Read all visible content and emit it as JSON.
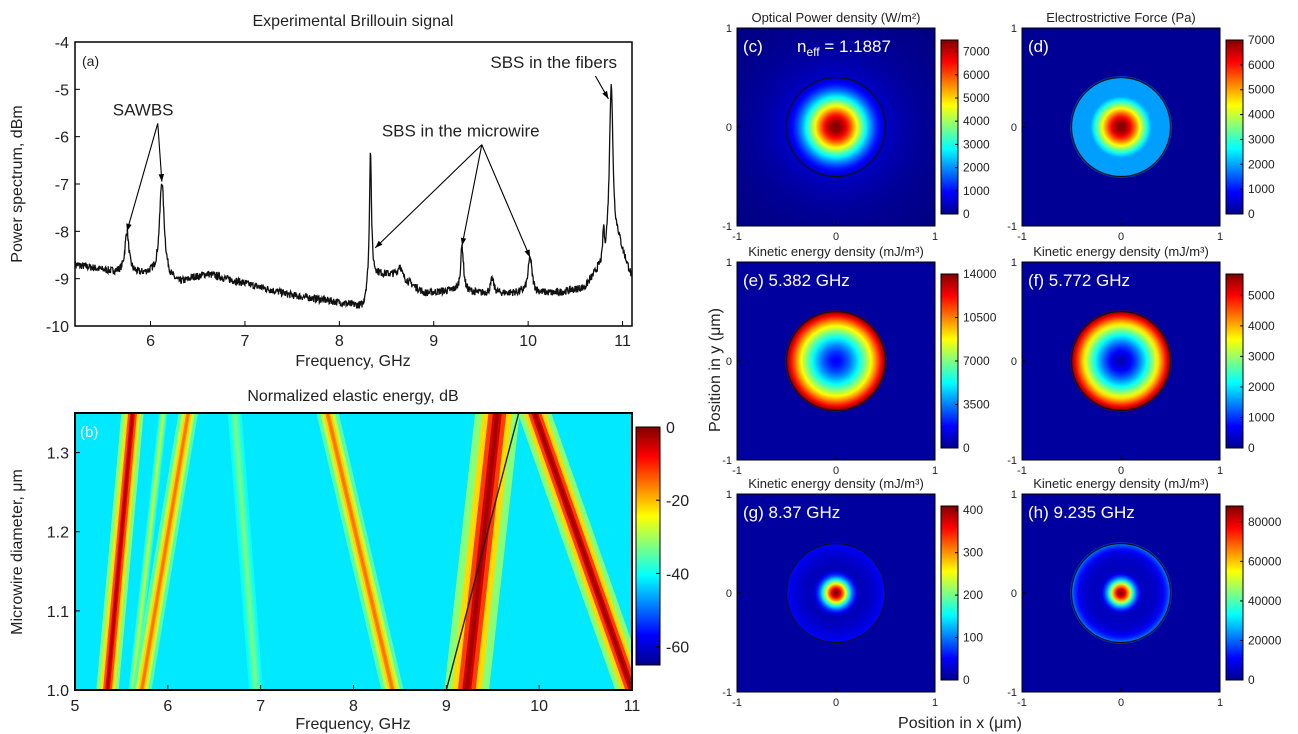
{
  "chart_data": [
    {
      "id": "a",
      "type": "line",
      "title": "Experimental Brillouin signal",
      "panel_label": "(a)",
      "xlabel": "Frequency, GHz",
      "ylabel": "Power spectrum, dBm",
      "xlim": [
        5.2,
        11.1
      ],
      "ylim": [
        -10,
        -4
      ],
      "xticks": [
        6,
        7,
        8,
        9,
        10,
        11
      ],
      "yticks": [
        -10,
        -9,
        -8,
        -7,
        -6,
        -5,
        -4
      ],
      "baseline": [
        [
          5.2,
          -8.7
        ],
        [
          5.6,
          -8.85
        ],
        [
          6.0,
          -8.9
        ],
        [
          6.3,
          -9.1
        ],
        [
          6.6,
          -8.9
        ],
        [
          7.0,
          -9.1
        ],
        [
          7.5,
          -9.35
        ],
        [
          8.0,
          -9.5
        ],
        [
          8.25,
          -9.6
        ],
        [
          8.35,
          -8.9
        ],
        [
          8.6,
          -8.9
        ],
        [
          8.9,
          -9.3
        ],
        [
          9.2,
          -9.25
        ],
        [
          9.5,
          -9.3
        ],
        [
          9.9,
          -9.3
        ],
        [
          10.3,
          -9.3
        ],
        [
          10.6,
          -9.2
        ],
        [
          10.75,
          -8.8
        ],
        [
          10.95,
          -8.2
        ],
        [
          11.1,
          -9.0
        ]
      ],
      "peaks": [
        {
          "x": 5.75,
          "y": -8.0,
          "w": 0.025
        },
        {
          "x": 6.12,
          "y": -6.95,
          "w": 0.03
        },
        {
          "x": 6.48,
          "y": -8.95,
          "w": 0.05
        },
        {
          "x": 8.33,
          "y": -6.25,
          "w": 0.012
        },
        {
          "x": 8.64,
          "y": -8.7,
          "w": 0.02
        },
        {
          "x": 9.3,
          "y": -8.3,
          "w": 0.018
        },
        {
          "x": 9.62,
          "y": -9.0,
          "w": 0.02
        },
        {
          "x": 10.02,
          "y": -8.55,
          "w": 0.025
        },
        {
          "x": 10.8,
          "y": -7.85,
          "w": 0.012
        },
        {
          "x": 10.88,
          "y": -4.85,
          "w": 0.022
        }
      ],
      "annotations": [
        {
          "text": "SAWBS",
          "x": 5.6,
          "y": -5.55,
          "targets": [
            [
              5.75,
              -8.0
            ],
            [
              6.12,
              -6.95
            ]
          ]
        },
        {
          "text": "SBS in the microwire",
          "x": 8.45,
          "y": -6.0,
          "targets": [
            [
              8.38,
              -8.35
            ],
            [
              9.3,
              -8.3
            ],
            [
              10.02,
              -8.55
            ]
          ]
        },
        {
          "text": "SBS in the fibers",
          "x": 9.6,
          "y": -4.55,
          "targets": [
            [
              10.85,
              -5.2
            ]
          ]
        }
      ]
    },
    {
      "id": "b",
      "type": "heatmap",
      "title": "Normalized elastic energy, dB",
      "panel_label": "(b)",
      "xlabel": "Frequency, GHz",
      "ylabel": "Microwire diameter, μm",
      "xlim": [
        5,
        11
      ],
      "ylim": [
        1.0,
        1.35
      ],
      "xticks": [
        5,
        6,
        7,
        8,
        9,
        10,
        11
      ],
      "yticks": [
        1.0,
        1.1,
        1.2,
        1.3
      ],
      "colorbar": {
        "min": -65,
        "max": 0,
        "ticks": [
          0,
          -20,
          -40,
          -60
        ]
      },
      "background_db": -42,
      "modes": [
        {
          "f_bottom": 5.35,
          "f_top": 5.62,
          "db": -3,
          "width": 0.04
        },
        {
          "f_bottom": 5.62,
          "f_top": 5.95,
          "db": -28,
          "width": 0.015
        },
        {
          "f_bottom": 5.72,
          "f_top": 6.22,
          "db": -15,
          "width": 0.035
        },
        {
          "f_bottom": 6.95,
          "f_top": 6.72,
          "db": -33,
          "width": 0.025
        },
        {
          "f_bottom": 8.42,
          "f_top": 7.72,
          "db": -15,
          "width": 0.04
        },
        {
          "f_bottom": 9.22,
          "f_top": 9.55,
          "db": -2,
          "width": 0.08
        },
        {
          "f_bottom": 11.0,
          "f_top": 9.95,
          "db": -2,
          "width": 0.06
        }
      ],
      "fit_line": [
        [
          9.0,
          1.0
        ],
        [
          9.78,
          1.35
        ]
      ]
    },
    {
      "id": "c",
      "type": "heatmap",
      "title": "Optical Power density (W/m²)",
      "panel_label": "(c)",
      "extra_label": "n",
      "extra_label_sub": "eff",
      "extra_label_value": " = 1.1887",
      "colorbar": {
        "min": 0,
        "max": 7500,
        "ticks": [
          0,
          1000,
          2000,
          3000,
          4000,
          5000,
          6000,
          7000
        ]
      },
      "profile": "gaussian",
      "inside_frac": 0.58,
      "outside_decay": 0.35
    },
    {
      "id": "d",
      "type": "heatmap",
      "title": "Electrostrictive Force (Pa)",
      "panel_label": "(d)",
      "colorbar": {
        "min": 0,
        "max": 7000,
        "ticks": [
          0,
          1000,
          2000,
          3000,
          4000,
          5000,
          6000,
          7000
        ]
      },
      "profile": "gaussian_clipped",
      "inside_frac": 0.52,
      "edge_frac": 0.28
    },
    {
      "id": "e",
      "type": "heatmap",
      "title": "Kinetic energy density (mJ/m³)",
      "panel_label": "(e) 5.382 GHz",
      "colorbar": {
        "min": 0,
        "max": 14000,
        "ticks": [
          0,
          3500,
          7000,
          10500,
          14000
        ]
      },
      "profile": "ring",
      "center_frac": 0.12
    },
    {
      "id": "f",
      "type": "heatmap",
      "title": "Kinetic energy density (mJ/m³)",
      "panel_label": "(f) 5.772 GHz",
      "colorbar": {
        "min": 0,
        "max": 5700,
        "ticks": [
          0,
          1000,
          2000,
          3000,
          4000,
          5000
        ]
      },
      "profile": "ring",
      "center_frac": 0.05
    },
    {
      "id": "g",
      "type": "heatmap",
      "title": "Kinetic energy density (mJ/m³)",
      "panel_label": "(g) 8.37 GHz",
      "colorbar": {
        "min": 0,
        "max": 410,
        "ticks": [
          0,
          100,
          200,
          300,
          400
        ]
      },
      "profile": "spot",
      "spot_frac": 0.3
    },
    {
      "id": "h",
      "type": "heatmap",
      "title": "Kinetic energy density (mJ/m³)",
      "panel_label": "(h) 9.235 GHz",
      "colorbar": {
        "min": 0,
        "max": 88000,
        "ticks": [
          0,
          20000,
          40000,
          60000,
          80000
        ]
      },
      "profile": "spot_ring",
      "spot_frac": 0.28
    }
  ],
  "map_axes": {
    "xlabel": "Position in x (μm)",
    "ylabel": "Position in y (μm)",
    "ticks": [
      -1,
      0,
      1
    ],
    "xlim": [
      -1,
      1
    ],
    "ylim": [
      -1,
      1
    ],
    "core_radius": 0.5
  }
}
